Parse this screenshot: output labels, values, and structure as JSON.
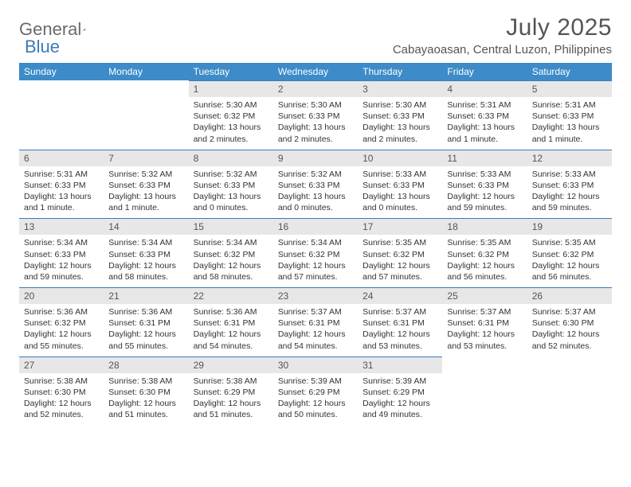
{
  "brand": {
    "part1": "General",
    "part2": "Blue"
  },
  "title": "July 2025",
  "location": "Cabayaoasan, Central Luzon, Philippines",
  "colors": {
    "header_bg": "#3d8bc8",
    "header_text": "#ffffff",
    "daynum_bg": "#e7e7e7",
    "daynum_border": "#3d7ab8",
    "body_text": "#333333",
    "title_text": "#555555",
    "logo_gray": "#6a6a6a",
    "logo_blue": "#3d7ab8"
  },
  "dow": [
    "Sunday",
    "Monday",
    "Tuesday",
    "Wednesday",
    "Thursday",
    "Friday",
    "Saturday"
  ],
  "weeks": [
    [
      null,
      null,
      {
        "n": 1,
        "rise": "5:30 AM",
        "set": "6:32 PM",
        "day": "13 hours and 2 minutes."
      },
      {
        "n": 2,
        "rise": "5:30 AM",
        "set": "6:33 PM",
        "day": "13 hours and 2 minutes."
      },
      {
        "n": 3,
        "rise": "5:30 AM",
        "set": "6:33 PM",
        "day": "13 hours and 2 minutes."
      },
      {
        "n": 4,
        "rise": "5:31 AM",
        "set": "6:33 PM",
        "day": "13 hours and 1 minute."
      },
      {
        "n": 5,
        "rise": "5:31 AM",
        "set": "6:33 PM",
        "day": "13 hours and 1 minute."
      }
    ],
    [
      {
        "n": 6,
        "rise": "5:31 AM",
        "set": "6:33 PM",
        "day": "13 hours and 1 minute."
      },
      {
        "n": 7,
        "rise": "5:32 AM",
        "set": "6:33 PM",
        "day": "13 hours and 1 minute."
      },
      {
        "n": 8,
        "rise": "5:32 AM",
        "set": "6:33 PM",
        "day": "13 hours and 0 minutes."
      },
      {
        "n": 9,
        "rise": "5:32 AM",
        "set": "6:33 PM",
        "day": "13 hours and 0 minutes."
      },
      {
        "n": 10,
        "rise": "5:33 AM",
        "set": "6:33 PM",
        "day": "13 hours and 0 minutes."
      },
      {
        "n": 11,
        "rise": "5:33 AM",
        "set": "6:33 PM",
        "day": "12 hours and 59 minutes."
      },
      {
        "n": 12,
        "rise": "5:33 AM",
        "set": "6:33 PM",
        "day": "12 hours and 59 minutes."
      }
    ],
    [
      {
        "n": 13,
        "rise": "5:34 AM",
        "set": "6:33 PM",
        "day": "12 hours and 59 minutes."
      },
      {
        "n": 14,
        "rise": "5:34 AM",
        "set": "6:33 PM",
        "day": "12 hours and 58 minutes."
      },
      {
        "n": 15,
        "rise": "5:34 AM",
        "set": "6:32 PM",
        "day": "12 hours and 58 minutes."
      },
      {
        "n": 16,
        "rise": "5:34 AM",
        "set": "6:32 PM",
        "day": "12 hours and 57 minutes."
      },
      {
        "n": 17,
        "rise": "5:35 AM",
        "set": "6:32 PM",
        "day": "12 hours and 57 minutes."
      },
      {
        "n": 18,
        "rise": "5:35 AM",
        "set": "6:32 PM",
        "day": "12 hours and 56 minutes."
      },
      {
        "n": 19,
        "rise": "5:35 AM",
        "set": "6:32 PM",
        "day": "12 hours and 56 minutes."
      }
    ],
    [
      {
        "n": 20,
        "rise": "5:36 AM",
        "set": "6:32 PM",
        "day": "12 hours and 55 minutes."
      },
      {
        "n": 21,
        "rise": "5:36 AM",
        "set": "6:31 PM",
        "day": "12 hours and 55 minutes."
      },
      {
        "n": 22,
        "rise": "5:36 AM",
        "set": "6:31 PM",
        "day": "12 hours and 54 minutes."
      },
      {
        "n": 23,
        "rise": "5:37 AM",
        "set": "6:31 PM",
        "day": "12 hours and 54 minutes."
      },
      {
        "n": 24,
        "rise": "5:37 AM",
        "set": "6:31 PM",
        "day": "12 hours and 53 minutes."
      },
      {
        "n": 25,
        "rise": "5:37 AM",
        "set": "6:31 PM",
        "day": "12 hours and 53 minutes."
      },
      {
        "n": 26,
        "rise": "5:37 AM",
        "set": "6:30 PM",
        "day": "12 hours and 52 minutes."
      }
    ],
    [
      {
        "n": 27,
        "rise": "5:38 AM",
        "set": "6:30 PM",
        "day": "12 hours and 52 minutes."
      },
      {
        "n": 28,
        "rise": "5:38 AM",
        "set": "6:30 PM",
        "day": "12 hours and 51 minutes."
      },
      {
        "n": 29,
        "rise": "5:38 AM",
        "set": "6:29 PM",
        "day": "12 hours and 51 minutes."
      },
      {
        "n": 30,
        "rise": "5:39 AM",
        "set": "6:29 PM",
        "day": "12 hours and 50 minutes."
      },
      {
        "n": 31,
        "rise": "5:39 AM",
        "set": "6:29 PM",
        "day": "12 hours and 49 minutes."
      },
      null,
      null
    ]
  ],
  "labels": {
    "sunrise": "Sunrise:",
    "sunset": "Sunset:",
    "daylight": "Daylight:"
  }
}
